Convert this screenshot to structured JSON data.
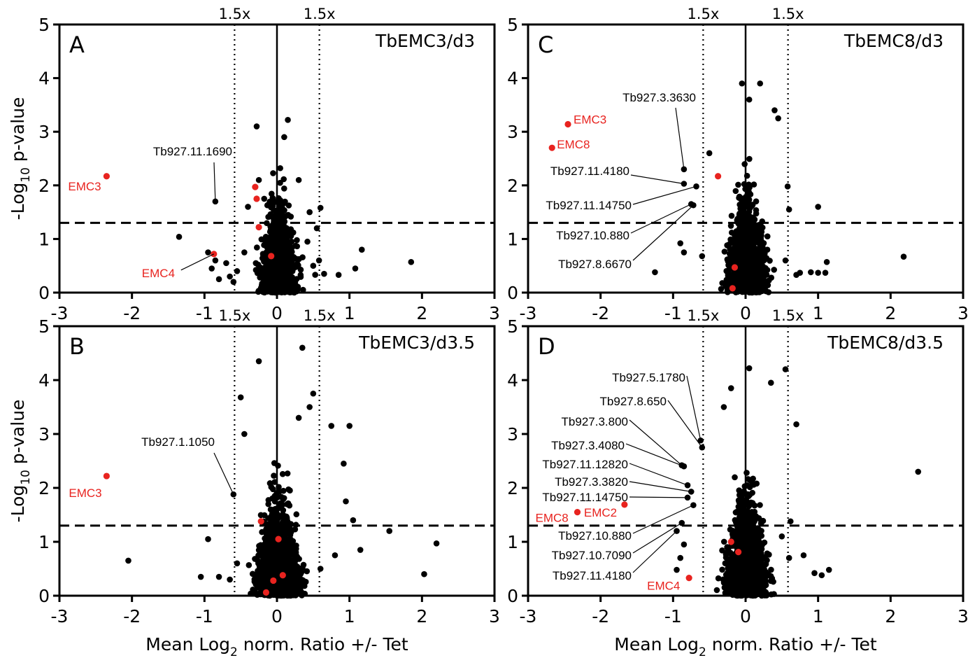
{
  "chart_data": [
    {
      "type": "scatter",
      "panel": "A",
      "title": "TbEMC3/d3",
      "xlabel": "",
      "ylabel": "-Log10 p-value",
      "xlim": [
        -3,
        3
      ],
      "ylim": [
        0,
        5
      ],
      "xticks": [
        -3,
        -2,
        -1,
        0,
        1,
        2,
        3
      ],
      "yticks": [
        0,
        1,
        2,
        3,
        4,
        5
      ],
      "fold_lines": {
        "x": [
          -0.585,
          0.585
        ],
        "label": "1.5x"
      },
      "significance_line": 1.3,
      "background_points": [
        [
          -0.85,
          1.7
        ],
        [
          -1.35,
          1.04
        ],
        [
          -0.95,
          0.75
        ],
        [
          -0.85,
          0.6
        ],
        [
          -0.9,
          0.45
        ],
        [
          -0.65,
          0.3
        ],
        [
          -0.8,
          0.25
        ],
        [
          1.85,
          0.57
        ],
        [
          1.17,
          0.8
        ],
        [
          1.08,
          0.45
        ],
        [
          0.85,
          0.33
        ],
        [
          0.6,
          1.58
        ],
        [
          0.58,
          0.6
        ],
        [
          0.55,
          1.2
        ],
        [
          -0.28,
          3.1
        ],
        [
          0.15,
          3.22
        ],
        [
          -0.25,
          2.1
        ],
        [
          0.1,
          2.9
        ],
        [
          0.3,
          2.1
        ],
        [
          -0.45,
          0.75
        ],
        [
          0.42,
          0.95
        ],
        [
          -0.4,
          1.6
        ],
        [
          0.45,
          1.5
        ],
        [
          -0.55,
          0.4
        ],
        [
          0.5,
          0.5
        ],
        [
          -0.6,
          0.2
        ],
        [
          0.65,
          0.35
        ],
        [
          -0.7,
          0.55
        ]
      ],
      "highlighted": [
        {
          "name": "EMC3",
          "x": -2.35,
          "y": 2.17
        },
        {
          "name": "EMC4",
          "x": -0.87,
          "y": 0.72
        },
        {
          "name": "",
          "x": -0.3,
          "y": 1.97
        },
        {
          "name": "",
          "x": -0.28,
          "y": 1.75
        },
        {
          "name": "",
          "x": -0.25,
          "y": 1.22
        },
        {
          "name": "",
          "x": -0.08,
          "y": 0.68
        }
      ],
      "annotations": [
        {
          "label": "Tb927.11.1690",
          "x": -0.85,
          "y": 1.7
        }
      ]
    },
    {
      "type": "scatter",
      "panel": "B",
      "title": "TbEMC3/d3.5",
      "xlabel": "Mean Log2 norm. Ratio +/- Tet",
      "ylabel": "-Log10 p-value",
      "xlim": [
        -3,
        3
      ],
      "ylim": [
        0,
        5
      ],
      "xticks": [
        -3,
        -2,
        -1,
        0,
        1,
        2,
        3
      ],
      "yticks": [
        0,
        1,
        2,
        3,
        4,
        5
      ],
      "fold_lines": {
        "x": [
          -0.585,
          0.585
        ],
        "label": "1.5x"
      },
      "significance_line": 1.3,
      "background_points": [
        [
          -0.6,
          1.88
        ],
        [
          -2.05,
          0.65
        ],
        [
          -0.95,
          1.05
        ],
        [
          -1.05,
          0.35
        ],
        [
          -0.8,
          0.35
        ],
        [
          -0.5,
          3.68
        ],
        [
          -0.25,
          4.35
        ],
        [
          0.35,
          4.6
        ],
        [
          0.5,
          3.75
        ],
        [
          0.75,
          3.15
        ],
        [
          1.0,
          3.15
        ],
        [
          0.92,
          2.45
        ],
        [
          0.95,
          1.75
        ],
        [
          1.05,
          1.4
        ],
        [
          1.55,
          1.2
        ],
        [
          1.15,
          0.85
        ],
        [
          2.2,
          0.97
        ],
        [
          2.03,
          0.4
        ],
        [
          0.8,
          0.75
        ],
        [
          0.6,
          0.5
        ],
        [
          -0.55,
          0.6
        ],
        [
          -0.65,
          0.3
        ],
        [
          0.45,
          3.5
        ],
        [
          -0.45,
          3.0
        ],
        [
          0.3,
          3.3
        ]
      ],
      "highlighted": [
        {
          "name": "EMC3",
          "x": -2.35,
          "y": 2.22
        },
        {
          "name": "",
          "x": -0.22,
          "y": 1.38
        },
        {
          "name": "",
          "x": 0.02,
          "y": 1.05
        },
        {
          "name": "",
          "x": 0.08,
          "y": 0.38
        },
        {
          "name": "",
          "x": -0.05,
          "y": 0.28
        },
        {
          "name": "",
          "x": -0.15,
          "y": 0.06
        }
      ],
      "annotations": [
        {
          "label": "Tb927.1.1050",
          "x": -0.6,
          "y": 1.88
        }
      ]
    },
    {
      "type": "scatter",
      "panel": "C",
      "title": "TbEMC8/d3",
      "xlabel": "",
      "ylabel": "",
      "xlim": [
        -3,
        3
      ],
      "ylim": [
        0,
        5
      ],
      "xticks": [
        -3,
        -2,
        -1,
        0,
        1,
        2,
        3
      ],
      "yticks": [
        0,
        1,
        2,
        3,
        4,
        5
      ],
      "fold_lines": {
        "x": [
          -0.585,
          0.585
        ],
        "label": "1.5x"
      },
      "significance_line": 1.3,
      "background_points": [
        [
          -0.85,
          2.3
        ],
        [
          -0.85,
          2.03
        ],
        [
          -0.68,
          1.98
        ],
        [
          -0.75,
          1.65
        ],
        [
          -0.72,
          1.63
        ],
        [
          -1.25,
          0.38
        ],
        [
          -0.9,
          0.92
        ],
        [
          -0.85,
          0.75
        ],
        [
          -0.6,
          0.68
        ],
        [
          0.4,
          3.4
        ],
        [
          0.45,
          3.25
        ],
        [
          0.2,
          3.9
        ],
        [
          -0.05,
          3.9
        ],
        [
          0.05,
          3.6
        ],
        [
          1.0,
          1.6
        ],
        [
          2.18,
          0.67
        ],
        [
          1.12,
          0.57
        ],
        [
          0.9,
          0.38
        ],
        [
          1.0,
          0.37
        ],
        [
          1.1,
          0.37
        ],
        [
          0.75,
          0.37
        ],
        [
          0.7,
          0.33
        ],
        [
          0.58,
          1.98
        ],
        [
          0.6,
          1.55
        ],
        [
          -0.5,
          2.6
        ],
        [
          0.55,
          0.6
        ]
      ],
      "highlighted": [
        {
          "name": "EMC3",
          "x": -2.45,
          "y": 3.14
        },
        {
          "name": "EMC8",
          "x": -2.67,
          "y": 2.7
        },
        {
          "name": "",
          "x": -0.38,
          "y": 2.17
        },
        {
          "name": "",
          "x": -0.15,
          "y": 0.47
        },
        {
          "name": "",
          "x": -0.18,
          "y": 0.08
        }
      ],
      "annotations": [
        {
          "label": "Tb927.3.3630",
          "x": -0.85,
          "y": 2.3
        },
        {
          "label": "Tb927.11.4180",
          "x": -0.85,
          "y": 2.03
        },
        {
          "label": "Tb927.11.14750",
          "x": -0.68,
          "y": 1.98
        },
        {
          "label": "Tb927.10.880",
          "x": -0.75,
          "y": 1.65
        },
        {
          "label": "Tb927.8.6670",
          "x": -0.72,
          "y": 1.63
        }
      ]
    },
    {
      "type": "scatter",
      "panel": "D",
      "title": "TbEMC8/d3.5",
      "xlabel": "Mean Log2 norm. Ratio +/- Tet",
      "ylabel": "",
      "xlim": [
        -3,
        3
      ],
      "ylim": [
        0,
        5
      ],
      "xticks": [
        -3,
        -2,
        -1,
        0,
        1,
        2,
        3
      ],
      "yticks": [
        0,
        1,
        2,
        3,
        4,
        5
      ],
      "fold_lines": {
        "x": [
          -0.585,
          0.585
        ],
        "label": "1.5x"
      },
      "significance_line": 1.3,
      "background_points": [
        [
          -0.62,
          2.88
        ],
        [
          -0.6,
          2.75
        ],
        [
          -0.88,
          2.42
        ],
        [
          -0.85,
          2.4
        ],
        [
          -0.8,
          2.05
        ],
        [
          -0.75,
          1.93
        ],
        [
          -0.8,
          1.82
        ],
        [
          -0.72,
          1.68
        ],
        [
          -0.88,
          1.35
        ],
        [
          -0.95,
          1.2
        ],
        [
          -0.85,
          0.95
        ],
        [
          -0.9,
          0.7
        ],
        [
          -0.95,
          0.48
        ],
        [
          2.38,
          2.3
        ],
        [
          0.7,
          3.18
        ],
        [
          0.55,
          4.2
        ],
        [
          0.05,
          4.22
        ],
        [
          -0.2,
          3.85
        ],
        [
          0.35,
          3.95
        ],
        [
          0.95,
          0.42
        ],
        [
          1.15,
          0.48
        ],
        [
          1.05,
          0.38
        ],
        [
          0.8,
          0.75
        ],
        [
          0.62,
          1.38
        ],
        [
          -0.3,
          3.5
        ],
        [
          0.5,
          1.1
        ],
        [
          0.6,
          0.7
        ]
      ],
      "highlighted": [
        {
          "name": "EMC8",
          "x": -2.32,
          "y": 1.55
        },
        {
          "name": "EMC2",
          "x": -1.67,
          "y": 1.69
        },
        {
          "name": "EMC4",
          "x": -0.78,
          "y": 0.33
        },
        {
          "name": "",
          "x": -0.2,
          "y": 1.0
        },
        {
          "name": "",
          "x": -0.1,
          "y": 0.81
        }
      ],
      "annotations": [
        {
          "label": "Tb927.5.1780",
          "x": -0.62,
          "y": 2.88
        },
        {
          "label": "Tb927.8.650",
          "x": -0.6,
          "y": 2.75
        },
        {
          "label": "Tb927.3.800",
          "x": -0.88,
          "y": 2.42
        },
        {
          "label": "Tb927.3.4080",
          "x": -0.85,
          "y": 2.4
        },
        {
          "label": "Tb927.11.12820",
          "x": -0.8,
          "y": 2.05
        },
        {
          "label": "Tb927.3.3820",
          "x": -0.75,
          "y": 1.93
        },
        {
          "label": "Tb927.11.14750",
          "x": -0.8,
          "y": 1.82
        },
        {
          "label": "Tb927.10.880",
          "x": -0.72,
          "y": 1.68
        },
        {
          "label": "Tb927.10.7090",
          "x": -0.88,
          "y": 1.35
        },
        {
          "label": "Tb927.11.4180",
          "x": -0.95,
          "y": 1.2
        }
      ]
    }
  ],
  "colors": {
    "highlight": "#e8231f",
    "points": "#000000",
    "axes": "#000000"
  },
  "ylabel_parts": {
    "pre": "-Log",
    "sub": "10",
    "post": " p-value"
  },
  "xlabel_parts": {
    "pre": "Mean Log",
    "sub": "2",
    "post": " norm. Ratio +/- Tet"
  },
  "fold_label": "1.5x"
}
